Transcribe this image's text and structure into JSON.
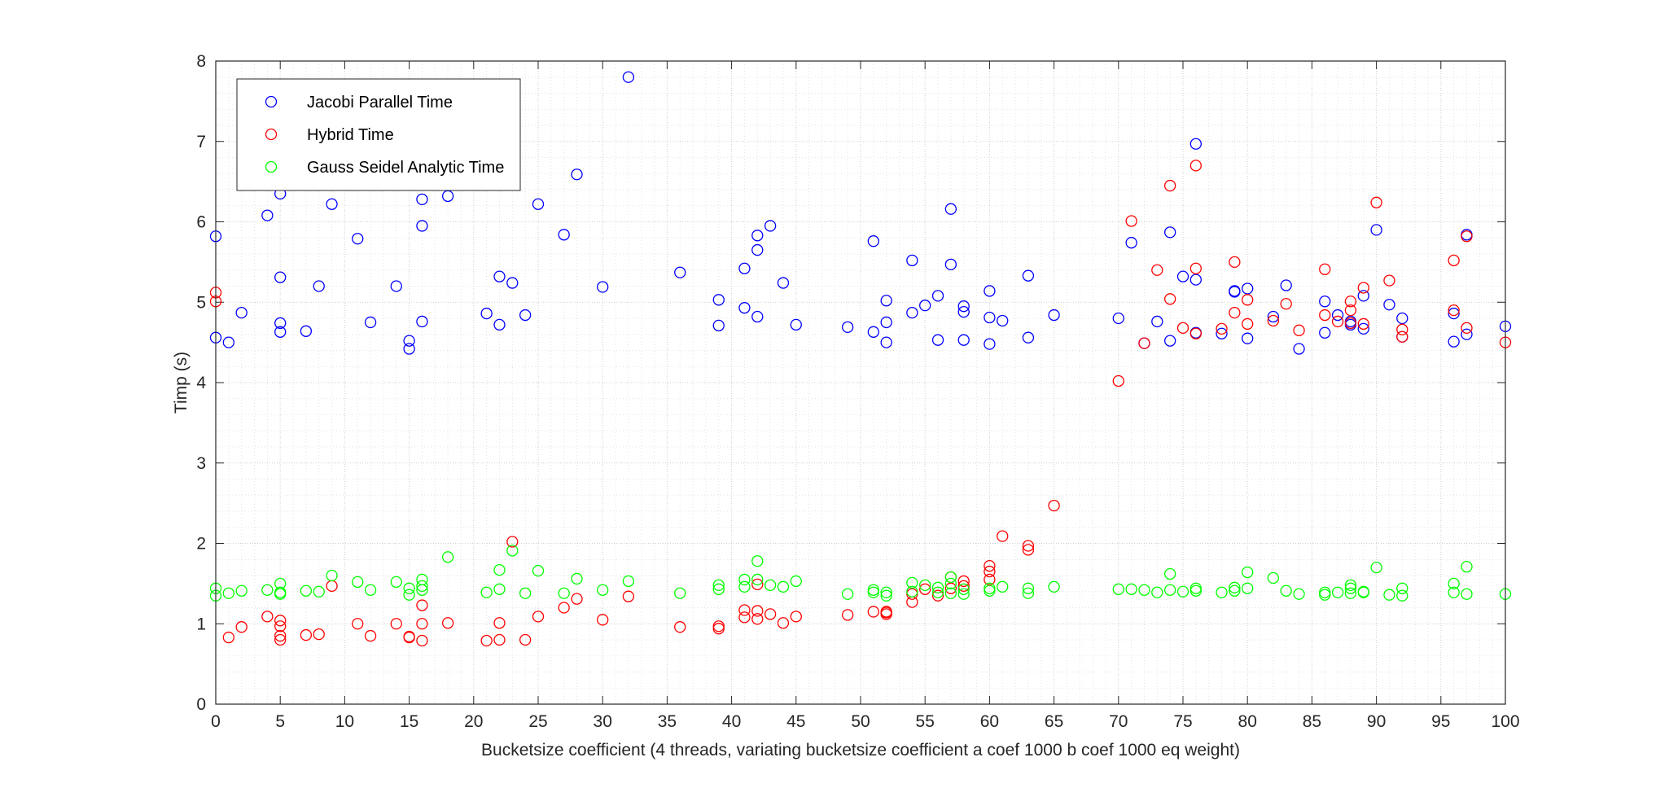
{
  "chart_data": {
    "type": "scatter",
    "title": "",
    "xlabel": "Bucketsize coefficient (4 threads, variating bucketsize coefficient a coef 1000 b coef 1000 eq weight)",
    "ylabel": "Timp (s)",
    "xlim": [
      0,
      100
    ],
    "ylim": [
      0,
      8
    ],
    "x_ticks": [
      0,
      5,
      10,
      15,
      20,
      25,
      30,
      35,
      40,
      45,
      50,
      55,
      60,
      65,
      70,
      75,
      80,
      85,
      90,
      95,
      100
    ],
    "y_ticks": [
      0,
      1,
      2,
      3,
      4,
      5,
      6,
      7,
      8
    ],
    "grid": "major and minor, dotted",
    "legend_position": "top-left",
    "series": [
      {
        "name": "Jacobi Parallel Time",
        "color": "#0000ff",
        "marker": "circle-open",
        "points": [
          [
            0,
            5.82
          ],
          [
            0,
            4.56
          ],
          [
            1,
            4.5
          ],
          [
            2,
            4.87
          ],
          [
            4,
            6.08
          ],
          [
            5,
            6.35
          ],
          [
            5,
            5.31
          ],
          [
            5,
            4.74
          ],
          [
            5,
            4.63
          ],
          [
            7,
            4.64
          ],
          [
            8,
            5.2
          ],
          [
            9,
            6.22
          ],
          [
            11,
            5.79
          ],
          [
            12,
            4.75
          ],
          [
            14,
            5.2
          ],
          [
            15,
            4.52
          ],
          [
            15,
            4.42
          ],
          [
            16,
            6.28
          ],
          [
            16,
            5.95
          ],
          [
            16,
            4.76
          ],
          [
            18,
            6.32
          ],
          [
            21,
            4.86
          ],
          [
            22,
            5.32
          ],
          [
            22,
            4.72
          ],
          [
            23,
            5.24
          ],
          [
            24,
            4.84
          ],
          [
            25,
            6.22
          ],
          [
            27,
            5.84
          ],
          [
            28,
            6.59
          ],
          [
            30,
            5.19
          ],
          [
            32,
            7.8
          ],
          [
            36,
            5.37
          ],
          [
            39,
            5.03
          ],
          [
            39,
            4.71
          ],
          [
            41,
            5.42
          ],
          [
            41,
            4.93
          ],
          [
            42,
            5.83
          ],
          [
            42,
            5.65
          ],
          [
            42,
            4.82
          ],
          [
            43,
            5.95
          ],
          [
            44,
            5.24
          ],
          [
            45,
            4.72
          ],
          [
            49,
            4.69
          ],
          [
            51,
            5.76
          ],
          [
            51,
            4.63
          ],
          [
            52,
            5.02
          ],
          [
            52,
            4.75
          ],
          [
            52,
            4.5
          ],
          [
            54,
            5.52
          ],
          [
            54,
            4.87
          ],
          [
            55,
            4.96
          ],
          [
            56,
            5.08
          ],
          [
            56,
            4.53
          ],
          [
            57,
            6.16
          ],
          [
            57,
            5.47
          ],
          [
            58,
            4.95
          ],
          [
            58,
            4.88
          ],
          [
            58,
            4.53
          ],
          [
            60,
            5.14
          ],
          [
            60,
            4.81
          ],
          [
            60,
            4.48
          ],
          [
            61,
            4.77
          ],
          [
            63,
            5.33
          ],
          [
            63,
            4.56
          ],
          [
            65,
            4.84
          ],
          [
            70,
            4.8
          ],
          [
            71,
            5.74
          ],
          [
            72,
            4.49
          ],
          [
            73,
            4.76
          ],
          [
            74,
            5.87
          ],
          [
            74,
            4.52
          ],
          [
            75,
            5.32
          ],
          [
            76,
            6.97
          ],
          [
            76,
            5.28
          ],
          [
            76,
            4.62
          ],
          [
            78,
            4.61
          ],
          [
            79,
            5.14
          ],
          [
            79,
            5.13
          ],
          [
            80,
            5.17
          ],
          [
            80,
            4.55
          ],
          [
            82,
            4.82
          ],
          [
            83,
            5.21
          ],
          [
            84,
            4.42
          ],
          [
            86,
            5.01
          ],
          [
            86,
            4.62
          ],
          [
            87,
            4.84
          ],
          [
            88,
            4.76
          ],
          [
            88,
            4.72
          ],
          [
            89,
            5.08
          ],
          [
            89,
            4.67
          ],
          [
            90,
            5.9
          ],
          [
            91,
            4.97
          ],
          [
            92,
            4.8
          ],
          [
            92,
            4.57
          ],
          [
            96,
            4.86
          ],
          [
            96,
            4.51
          ],
          [
            97,
            5.84
          ],
          [
            97,
            4.6
          ],
          [
            100,
            4.7
          ]
        ]
      },
      {
        "name": "Hybrid Time",
        "color": "#ff0000",
        "marker": "circle-open",
        "points": [
          [
            0,
            5.12
          ],
          [
            0,
            5.01
          ],
          [
            1,
            0.83
          ],
          [
            2,
            0.96
          ],
          [
            4,
            1.09
          ],
          [
            5,
            1.04
          ],
          [
            5,
            0.97
          ],
          [
            5,
            0.85
          ],
          [
            5,
            0.8
          ],
          [
            7,
            0.86
          ],
          [
            8,
            0.87
          ],
          [
            9,
            1.47
          ],
          [
            11,
            1.0
          ],
          [
            12,
            0.85
          ],
          [
            14,
            1.0
          ],
          [
            15,
            0.84
          ],
          [
            15,
            0.83
          ],
          [
            16,
            1.23
          ],
          [
            16,
            1.0
          ],
          [
            16,
            0.79
          ],
          [
            18,
            1.01
          ],
          [
            21,
            0.79
          ],
          [
            22,
            1.01
          ],
          [
            22,
            0.8
          ],
          [
            23,
            2.02
          ],
          [
            24,
            0.8
          ],
          [
            25,
            1.09
          ],
          [
            27,
            1.2
          ],
          [
            28,
            1.31
          ],
          [
            30,
            1.05
          ],
          [
            32,
            1.34
          ],
          [
            36,
            0.96
          ],
          [
            39,
            0.97
          ],
          [
            39,
            0.94
          ],
          [
            41,
            1.17
          ],
          [
            41,
            1.08
          ],
          [
            42,
            1.16
          ],
          [
            42,
            1.06
          ],
          [
            42,
            1.49
          ],
          [
            43,
            1.12
          ],
          [
            44,
            1.01
          ],
          [
            45,
            1.09
          ],
          [
            49,
            1.11
          ],
          [
            51,
            1.15
          ],
          [
            52,
            1.15
          ],
          [
            52,
            1.12
          ],
          [
            52,
            1.14
          ],
          [
            54,
            1.37
          ],
          [
            54,
            1.27
          ],
          [
            55,
            1.43
          ],
          [
            56,
            1.35
          ],
          [
            57,
            1.58
          ],
          [
            57,
            1.44
          ],
          [
            58,
            1.53
          ],
          [
            58,
            1.47
          ],
          [
            60,
            1.72
          ],
          [
            60,
            1.65
          ],
          [
            60,
            1.55
          ],
          [
            61,
            2.09
          ],
          [
            63,
            1.97
          ],
          [
            63,
            1.92
          ],
          [
            65,
            2.47
          ],
          [
            70,
            4.02
          ],
          [
            71,
            6.01
          ],
          [
            72,
            4.49
          ],
          [
            73,
            5.4
          ],
          [
            74,
            6.45
          ],
          [
            74,
            5.04
          ],
          [
            75,
            4.68
          ],
          [
            76,
            6.7
          ],
          [
            76,
            5.42
          ],
          [
            76,
            4.61
          ],
          [
            78,
            4.67
          ],
          [
            79,
            5.5
          ],
          [
            79,
            4.87
          ],
          [
            80,
            5.03
          ],
          [
            80,
            4.73
          ],
          [
            82,
            4.77
          ],
          [
            83,
            4.98
          ],
          [
            84,
            4.65
          ],
          [
            86,
            5.41
          ],
          [
            86,
            4.84
          ],
          [
            87,
            4.76
          ],
          [
            88,
            5.01
          ],
          [
            88,
            4.9
          ],
          [
            88,
            4.74
          ],
          [
            89,
            5.18
          ],
          [
            89,
            4.73
          ],
          [
            90,
            6.24
          ],
          [
            91,
            5.27
          ],
          [
            92,
            4.66
          ],
          [
            92,
            4.57
          ],
          [
            96,
            5.52
          ],
          [
            96,
            4.9
          ],
          [
            97,
            5.82
          ],
          [
            97,
            4.68
          ],
          [
            100,
            4.5
          ]
        ]
      },
      {
        "name": "Gauss Seidel Analytic Time",
        "color": "#00ff00",
        "marker": "circle-open",
        "points": [
          [
            0,
            1.44
          ],
          [
            0,
            1.35
          ],
          [
            1,
            1.38
          ],
          [
            2,
            1.41
          ],
          [
            4,
            1.42
          ],
          [
            5,
            1.5
          ],
          [
            5,
            1.39
          ],
          [
            5,
            1.37
          ],
          [
            7,
            1.41
          ],
          [
            8,
            1.4
          ],
          [
            9,
            1.6
          ],
          [
            11,
            1.52
          ],
          [
            12,
            1.42
          ],
          [
            14,
            1.52
          ],
          [
            15,
            1.44
          ],
          [
            15,
            1.36
          ],
          [
            16,
            1.55
          ],
          [
            16,
            1.47
          ],
          [
            16,
            1.42
          ],
          [
            18,
            1.83
          ],
          [
            21,
            1.39
          ],
          [
            22,
            1.67
          ],
          [
            22,
            1.43
          ],
          [
            23,
            1.91
          ],
          [
            24,
            1.38
          ],
          [
            25,
            1.66
          ],
          [
            27,
            1.38
          ],
          [
            28,
            1.56
          ],
          [
            30,
            1.42
          ],
          [
            32,
            1.53
          ],
          [
            36,
            1.38
          ],
          [
            39,
            1.48
          ],
          [
            39,
            1.43
          ],
          [
            41,
            1.55
          ],
          [
            41,
            1.46
          ],
          [
            42,
            1.78
          ],
          [
            42,
            1.55
          ],
          [
            43,
            1.48
          ],
          [
            44,
            1.46
          ],
          [
            45,
            1.53
          ],
          [
            49,
            1.37
          ],
          [
            51,
            1.42
          ],
          [
            51,
            1.39
          ],
          [
            52,
            1.39
          ],
          [
            52,
            1.35
          ],
          [
            54,
            1.51
          ],
          [
            54,
            1.4
          ],
          [
            55,
            1.48
          ],
          [
            56,
            1.45
          ],
          [
            56,
            1.39
          ],
          [
            57,
            1.58
          ],
          [
            57,
            1.5
          ],
          [
            57,
            1.38
          ],
          [
            58,
            1.43
          ],
          [
            58,
            1.37
          ],
          [
            60,
            1.44
          ],
          [
            60,
            1.41
          ],
          [
            61,
            1.46
          ],
          [
            63,
            1.44
          ],
          [
            63,
            1.38
          ],
          [
            65,
            1.46
          ],
          [
            70,
            1.43
          ],
          [
            71,
            1.43
          ],
          [
            72,
            1.42
          ],
          [
            73,
            1.39
          ],
          [
            74,
            1.62
          ],
          [
            74,
            1.42
          ],
          [
            75,
            1.4
          ],
          [
            76,
            1.44
          ],
          [
            76,
            1.41
          ],
          [
            78,
            1.39
          ],
          [
            79,
            1.45
          ],
          [
            79,
            1.41
          ],
          [
            80,
            1.64
          ],
          [
            80,
            1.44
          ],
          [
            82,
            1.57
          ],
          [
            83,
            1.41
          ],
          [
            84,
            1.37
          ],
          [
            86,
            1.39
          ],
          [
            86,
            1.36
          ],
          [
            87,
            1.39
          ],
          [
            88,
            1.48
          ],
          [
            88,
            1.44
          ],
          [
            88,
            1.38
          ],
          [
            89,
            1.4
          ],
          [
            89,
            1.39
          ],
          [
            90,
            1.7
          ],
          [
            91,
            1.36
          ],
          [
            92,
            1.44
          ],
          [
            92,
            1.35
          ],
          [
            96,
            1.5
          ],
          [
            96,
            1.39
          ],
          [
            97,
            1.71
          ],
          [
            97,
            1.37
          ],
          [
            100,
            1.37
          ]
        ]
      }
    ]
  }
}
